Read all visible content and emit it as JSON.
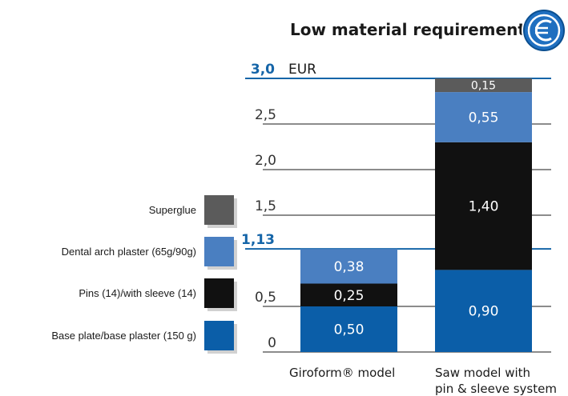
{
  "title": "Low material requirement",
  "icon": "euro-coin-icon",
  "colors": {
    "superglue": "#5b5b5b",
    "dental_arch": "#4a7fc1",
    "pins": "#111111",
    "base_plate": "#0b5ea8",
    "highlight": "#1565a8",
    "axis": "#1a1a1a"
  },
  "chart_data": {
    "type": "bar",
    "stacked": true,
    "unit": "EUR",
    "ylim": [
      0,
      3.0
    ],
    "yticks": [
      "0",
      "0,5",
      "1,5",
      "2,0",
      "2,5"
    ],
    "ytick_values": [
      0,
      0.5,
      1.5,
      2.0,
      2.5
    ],
    "highlight_ticks": [
      {
        "label": "1,13",
        "value": 1.13
      },
      {
        "label": "3,0",
        "value": 3.0
      }
    ],
    "categories": [
      "Giroform® model",
      "Saw model with pin & sleeve system"
    ],
    "category_lines": [
      [
        "Giroform® model"
      ],
      [
        "Saw model with",
        "pin & sleeve system"
      ]
    ],
    "series": [
      {
        "name": "Base plate/base plaster (150 g)",
        "values": [
          0.5,
          0.9
        ],
        "labels": [
          "0,50",
          "0,90"
        ]
      },
      {
        "name": "Pins (14)/with sleeve (14)",
        "values": [
          0.25,
          1.4
        ],
        "labels": [
          "0,25",
          "1,40"
        ]
      },
      {
        "name": "Dental arch plaster (65g/90g)",
        "values": [
          0.38,
          0.55
        ],
        "labels": [
          "0,38",
          "0,55"
        ]
      },
      {
        "name": "Superglue",
        "values": [
          0,
          0.15
        ],
        "labels": [
          "",
          "0,15"
        ]
      }
    ],
    "legend": [
      "Superglue",
      "Dental arch plaster (65g/90g)",
      "Pins (14)/with sleeve (14)",
      "Base plate/base plaster (150 g)"
    ],
    "legend_placement": "left"
  }
}
